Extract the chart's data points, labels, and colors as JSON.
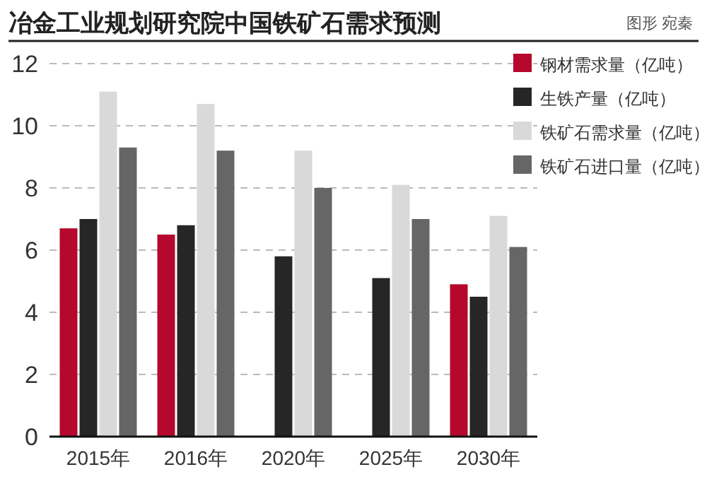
{
  "chart_data": {
    "type": "bar",
    "title": "冶金工业规划研究院中国铁矿石需求预测",
    "annotations": [
      "图形 宛秦"
    ],
    "categories": [
      "2015年",
      "2016年",
      "2020年",
      "2025年",
      "2030年"
    ],
    "series": [
      {
        "name": "钢材需求量（亿吨）",
        "color": "#b5082c",
        "values": [
          6.7,
          6.5,
          null,
          null,
          4.9
        ]
      },
      {
        "name": "生铁产量（亿吨）",
        "color": "#262626",
        "values": [
          7.0,
          6.8,
          5.8,
          5.1,
          4.5
        ]
      },
      {
        "name": "铁矿石需求量（亿吨）",
        "color": "#d9d9d9",
        "values": [
          11.1,
          10.7,
          9.2,
          8.1,
          7.1
        ]
      },
      {
        "name": "铁矿石进口量（亿吨）",
        "color": "#666666",
        "values": [
          9.3,
          9.2,
          8.0,
          7.0,
          6.1
        ]
      }
    ],
    "ylim": [
      0,
      12
    ],
    "yticks": [
      0,
      2,
      4,
      6,
      8,
      10,
      12
    ],
    "grid": "y",
    "legend": "top right"
  }
}
